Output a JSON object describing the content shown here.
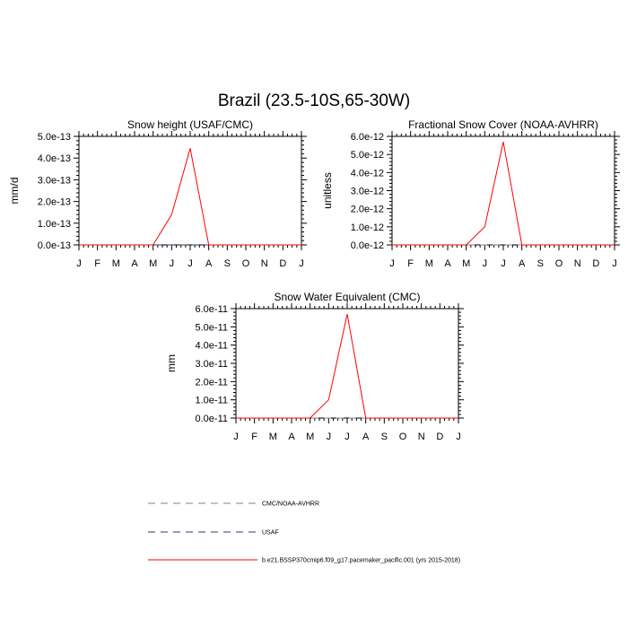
{
  "figure": {
    "title": "Brazil (23.5-10S,65-30W)"
  },
  "months": [
    "J",
    "F",
    "M",
    "A",
    "M",
    "J",
    "J",
    "A",
    "S",
    "O",
    "N",
    "D",
    "J"
  ],
  "legend": [
    {
      "label": "CMC/NOAA-AVHRR",
      "color": "#808080",
      "dash": "dashed"
    },
    {
      "label": "USAF",
      "color": "#2a3d6e",
      "dash": "dashed"
    },
    {
      "label": "b.e21.BSSP370cmip6.f09_g17.pacemaker_pacific.001 (yrs 2015-2018)",
      "color": "#ff0000",
      "dash": "solid"
    }
  ],
  "chart_data": [
    {
      "type": "line",
      "title": "Snow height (USAF/CMC)",
      "ylabel": "mm/d",
      "xlabel": "",
      "x": [
        "J",
        "F",
        "M",
        "A",
        "M",
        "J",
        "J",
        "A",
        "S",
        "O",
        "N",
        "D",
        "J"
      ],
      "ylim": [
        0,
        5e-13
      ],
      "ytick_labels": [
        "0.0e-13",
        "1.0e-13",
        "2.0e-13",
        "3.0e-13",
        "4.0e-13",
        "5.0e-13"
      ],
      "series": [
        {
          "name": "b.e21.BSSP370cmip6.f09_g17.pacemaker_pacific.001 (yrs 2015-2018)",
          "color": "#ff0000",
          "dash": "solid",
          "values": [
            0,
            0,
            0,
            0,
            0,
            1.4e-13,
            4.45e-13,
            0,
            0,
            0,
            0,
            0,
            0
          ]
        },
        {
          "name": "CMC/NOAA-AVHRR",
          "color": "#808080",
          "dash": "dashed",
          "values": [
            0,
            0,
            0,
            0,
            0,
            0,
            0,
            0,
            0,
            0,
            0,
            0,
            0
          ]
        },
        {
          "name": "USAF",
          "color": "#2a3d6e",
          "dash": "dashed",
          "values": [
            0,
            0,
            0,
            0,
            0,
            0,
            0,
            0,
            0,
            0,
            0,
            0,
            0
          ]
        }
      ]
    },
    {
      "type": "line",
      "title": "Fractional Snow Cover (NOAA-AVHRR)",
      "ylabel": "unitless",
      "xlabel": "",
      "x": [
        "J",
        "F",
        "M",
        "A",
        "M",
        "J",
        "J",
        "A",
        "S",
        "O",
        "N",
        "D",
        "J"
      ],
      "ylim": [
        0,
        6e-12
      ],
      "ytick_labels": [
        "0.0e-12",
        "1.0e-12",
        "2.0e-12",
        "3.0e-12",
        "4.0e-12",
        "5.0e-12",
        "6.0e-12"
      ],
      "series": [
        {
          "name": "b.e21.BSSP370cmip6.f09_g17.pacemaker_pacific.001 (yrs 2015-2018)",
          "color": "#ff0000",
          "dash": "solid",
          "values": [
            0,
            0,
            0,
            0,
            0,
            1e-12,
            5.7e-12,
            0,
            0,
            0,
            0,
            0,
            0
          ]
        },
        {
          "name": "CMC/NOAA-AVHRR",
          "color": "#808080",
          "dash": "dashed",
          "values": [
            0,
            0,
            0,
            0,
            0,
            0,
            0,
            0,
            0,
            0,
            0,
            0,
            0
          ]
        }
      ]
    },
    {
      "type": "line",
      "title": "Snow Water Equivalent (CMC)",
      "ylabel": "mm",
      "xlabel": "",
      "x": [
        "J",
        "F",
        "M",
        "A",
        "M",
        "J",
        "J",
        "A",
        "S",
        "O",
        "N",
        "D",
        "J"
      ],
      "ylim": [
        0,
        6e-11
      ],
      "ytick_labels": [
        "0.0e-11",
        "1.0e-11",
        "2.0e-11",
        "3.0e-11",
        "4.0e-11",
        "5.0e-11",
        "6.0e-11"
      ],
      "series": [
        {
          "name": "b.e21.BSSP370cmip6.f09_g17.pacemaker_pacific.001 (yrs 2015-2018)",
          "color": "#ff0000",
          "dash": "solid",
          "values": [
            0,
            0,
            0,
            0,
            0,
            1e-11,
            5.7e-11,
            0,
            0,
            0,
            0,
            0,
            0
          ]
        },
        {
          "name": "CMC/NOAA-AVHRR",
          "color": "#808080",
          "dash": "dashed",
          "values": [
            0,
            0,
            0,
            0,
            0,
            0,
            0,
            0,
            0,
            0,
            0,
            0,
            0
          ]
        }
      ]
    }
  ]
}
